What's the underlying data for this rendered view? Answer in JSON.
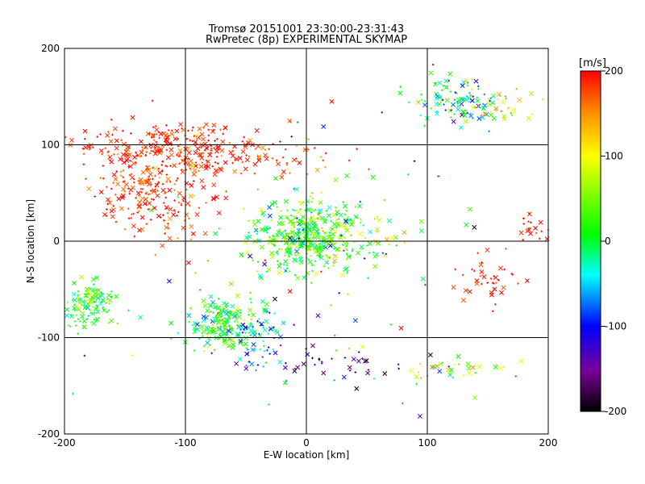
{
  "chart_data": {
    "type": "scatter",
    "title_line1": "Tromsø 20151001 23:30:00-23:31:43",
    "title_line2": "RwPretec (8p) EXPERIMENTAL SKYMAP",
    "xlabel": "E-W location [km]",
    "ylabel": "N-S location [km]",
    "xlim": [
      -200,
      200
    ],
    "ylim": [
      -200,
      200
    ],
    "xticks": [
      -200,
      -100,
      0,
      100,
      200
    ],
    "yticks": [
      -200,
      -100,
      0,
      100,
      200
    ],
    "grid": true,
    "colorbar": {
      "label": "[m/s]",
      "range": [
        -200,
        200
      ],
      "ticks": [
        200,
        100,
        0,
        -100,
        -200
      ],
      "colormap": "rainbow (black-purple-blue-cyan-green-yellow-orange-red)"
    },
    "markers": [
      "x",
      "+"
    ],
    "clusters": [
      {
        "cx": -120,
        "cy": 100,
        "sx": 35,
        "sy": 12,
        "n": 200,
        "v": 185,
        "vs": 20
      },
      {
        "cx": -60,
        "cy": 88,
        "sx": 40,
        "sy": 12,
        "n": 120,
        "v": 180,
        "vs": 25
      },
      {
        "cx": -130,
        "cy": 55,
        "sx": 25,
        "sy": 18,
        "n": 160,
        "v": 185,
        "vs": 20
      },
      {
        "cx": -110,
        "cy": 30,
        "sx": 25,
        "sy": 20,
        "n": 60,
        "v": 180,
        "vs": 25
      },
      {
        "cx": 0,
        "cy": 5,
        "sx": 20,
        "sy": 18,
        "n": 420,
        "v": 20,
        "vs": 45
      },
      {
        "cx": 45,
        "cy": 0,
        "sx": 20,
        "sy": 15,
        "n": 60,
        "v": 60,
        "vs": 60
      },
      {
        "cx": -70,
        "cy": -85,
        "sx": 15,
        "sy": 12,
        "n": 220,
        "v": 10,
        "vs": 45
      },
      {
        "cx": -40,
        "cy": -100,
        "sx": 12,
        "sy": 15,
        "n": 70,
        "v": -60,
        "vs": 50
      },
      {
        "cx": -180,
        "cy": -65,
        "sx": 10,
        "sy": 12,
        "n": 130,
        "v": 20,
        "vs": 40
      },
      {
        "cx": 125,
        "cy": 145,
        "sx": 20,
        "sy": 12,
        "n": 120,
        "v": -20,
        "vs": 60
      },
      {
        "cx": 160,
        "cy": 145,
        "sx": 15,
        "sy": 10,
        "n": 30,
        "v": 110,
        "vs": 30
      },
      {
        "cx": 150,
        "cy": -40,
        "sx": 12,
        "sy": 12,
        "n": 40,
        "v": 190,
        "vs": 15
      },
      {
        "cx": 20,
        "cy": -130,
        "sx": 25,
        "sy": 10,
        "n": 35,
        "v": -140,
        "vs": 50
      },
      {
        "cx": 130,
        "cy": -133,
        "sx": 25,
        "sy": 6,
        "n": 35,
        "v": 60,
        "vs": 70
      },
      {
        "cx": 185,
        "cy": 15,
        "sx": 8,
        "sy": 10,
        "n": 20,
        "v": 195,
        "vs": 10
      },
      {
        "cx": 0,
        "cy": -20,
        "sx": 80,
        "sy": 70,
        "n": 90,
        "v": 0,
        "vs": 120
      }
    ]
  }
}
